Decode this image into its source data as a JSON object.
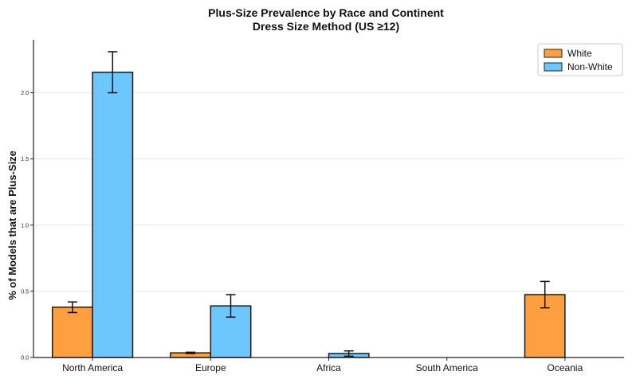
{
  "chart_data": {
    "type": "bar",
    "title": "Plus-Size Prevalence by Race and Continent",
    "subtitle": "Dress Size Method (US ≥12)",
    "xlabel": "",
    "ylabel": "% of Models that are Plus-Size",
    "categories": [
      "North America",
      "Europe",
      "Africa",
      "South America",
      "Oceania"
    ],
    "ylim": [
      0,
      2.4
    ],
    "yticks": [
      "0.0",
      "0.5",
      "1.0",
      "1.5",
      "2.0"
    ],
    "grid": "horizontal",
    "legend_position": "top-right",
    "series": [
      {
        "name": "White",
        "color": "#FF9F40",
        "values": [
          0.38,
          0.035,
          0.0,
          0.0,
          0.475
        ],
        "errors": [
          0.04,
          0.005,
          0.0,
          0.0,
          0.1
        ]
      },
      {
        "name": "Non-White",
        "color": "#6EC6FF",
        "values": [
          2.155,
          0.39,
          0.03,
          0.0,
          0.0
        ],
        "errors": [
          0.155,
          0.085,
          0.02,
          0.0,
          0.0
        ]
      }
    ]
  }
}
